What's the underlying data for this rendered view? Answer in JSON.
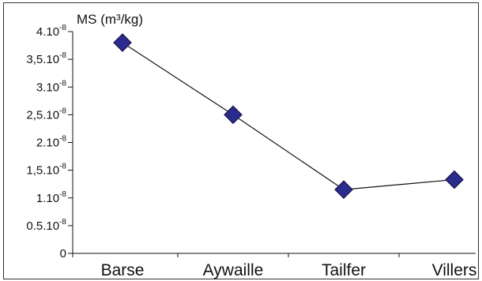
{
  "chart_data": {
    "type": "line",
    "title": "",
    "xlabel": "",
    "ylabel": "MS (m³/kg)",
    "categories": [
      "Barse",
      "Aywaille",
      "Tailfer",
      "Villers"
    ],
    "series": [
      {
        "values": [
          3.8e-08,
          2.5e-08,
          1.15e-08,
          1.33e-08
        ]
      }
    ],
    "ylim": [
      0,
      4e-08
    ],
    "y_ticks": [
      {
        "value": 0,
        "label": "0"
      },
      {
        "value": 5e-09,
        "label": "0.5.10",
        "exp": "-8"
      },
      {
        "value": 1e-08,
        "label": "1.10",
        "exp": "-8"
      },
      {
        "value": 1.5e-08,
        "label": "1,5.10",
        "exp": "-8"
      },
      {
        "value": 2e-08,
        "label": "2.10",
        "exp": "-8"
      },
      {
        "value": 2.5e-08,
        "label": "2,5.10",
        "exp": "-8"
      },
      {
        "value": 3e-08,
        "label": "3.10",
        "exp": "-8"
      },
      {
        "value": 3.5e-08,
        "label": "3,5.10",
        "exp": "-8"
      },
      {
        "value": 4e-08,
        "label": "4.10",
        "exp": "-8"
      }
    ],
    "grid": false,
    "legend": "none",
    "colors": {
      "marker": "#2b2b8f",
      "marker_stroke": "#15154a",
      "line": "#111111",
      "axis": "#111111"
    }
  }
}
